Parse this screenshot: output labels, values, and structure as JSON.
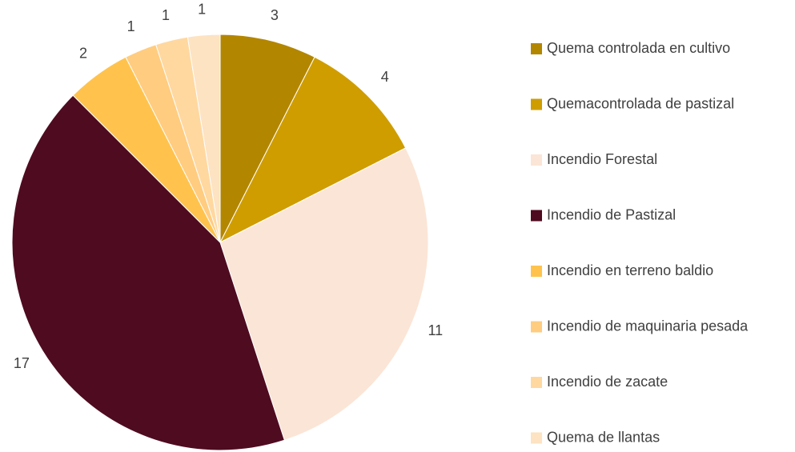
{
  "chart_data": {
    "type": "pie",
    "categories": [
      "Quema controlada en cultivo",
      "Quemacontrolada de pastizal",
      "Incendio Forestal",
      "Incendio de Pastizal",
      "Incendio en terreno baldio",
      "Incendio de maquinaria pesada",
      "Incendio de zacate",
      "Quema de llantas"
    ],
    "values": [
      3,
      4,
      11,
      17,
      2,
      1,
      1,
      1
    ],
    "colors": [
      "#b38600",
      "#cf9d00",
      "#fbe5d6",
      "#4f0b20",
      "#ffc34d",
      "#ffcc80",
      "#ffd8a0",
      "#fde3c2"
    ],
    "legend": "right"
  }
}
